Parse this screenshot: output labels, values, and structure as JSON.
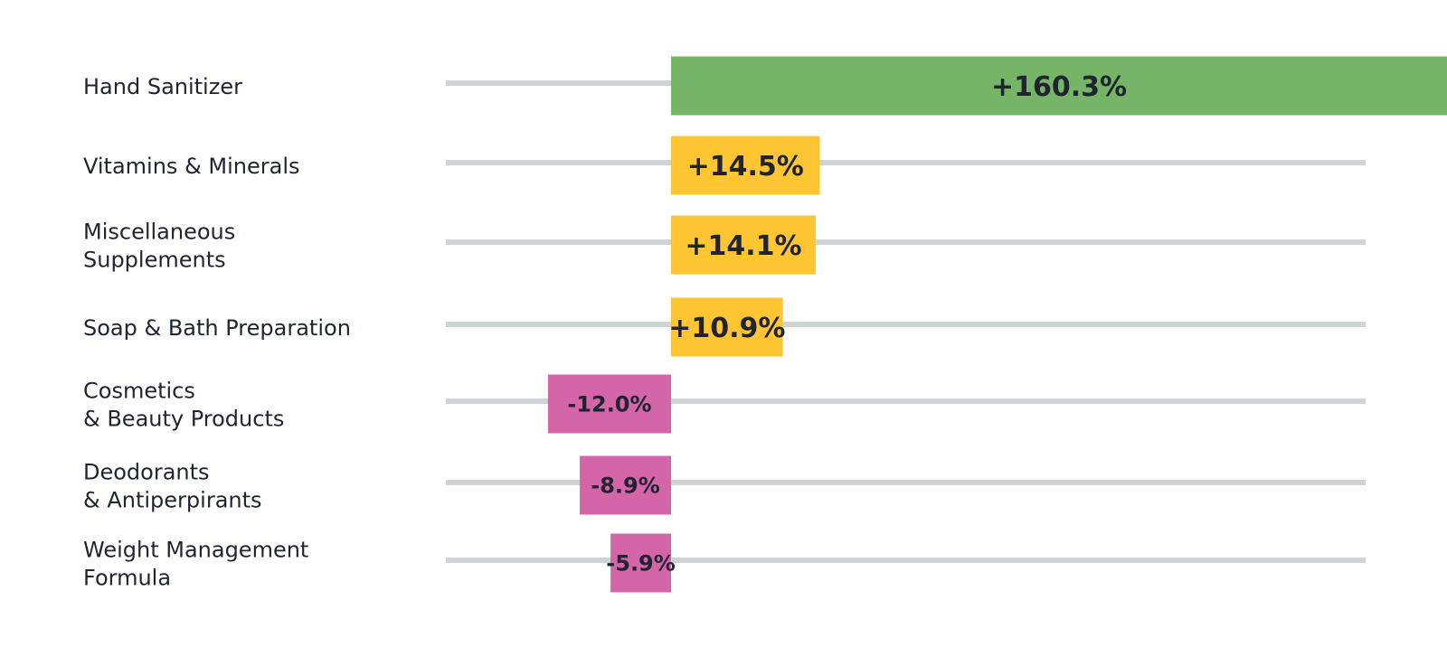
{
  "chart_data": {
    "type": "bar",
    "orientation": "horizontal",
    "categories": [
      [
        "Hand Sanitizer"
      ],
      [
        "Vitamins & Minerals"
      ],
      [
        "Miscellaneous",
        "Supplements"
      ],
      [
        "Soap & Bath Preparation"
      ],
      [
        "Cosmetics",
        "& Beauty Products"
      ],
      [
        "Deodorants",
        "& Antiperpirants"
      ],
      [
        "Weight Management",
        "Formula"
      ]
    ],
    "values": [
      160.3,
      14.5,
      14.1,
      10.9,
      -12.0,
      -8.9,
      -5.9
    ],
    "value_labels": [
      "+160.3%",
      "+14.5%",
      "+14.1%",
      "+10.9%",
      "-12.0%",
      "-8.9%",
      "-5.9%"
    ],
    "colors": {
      "large_positive": "#76b467",
      "positive": "#ffc532",
      "negative": "#d465a9",
      "track": "#cfd3d6",
      "text": "#1f2430"
    },
    "grid": false,
    "legend": "none"
  }
}
